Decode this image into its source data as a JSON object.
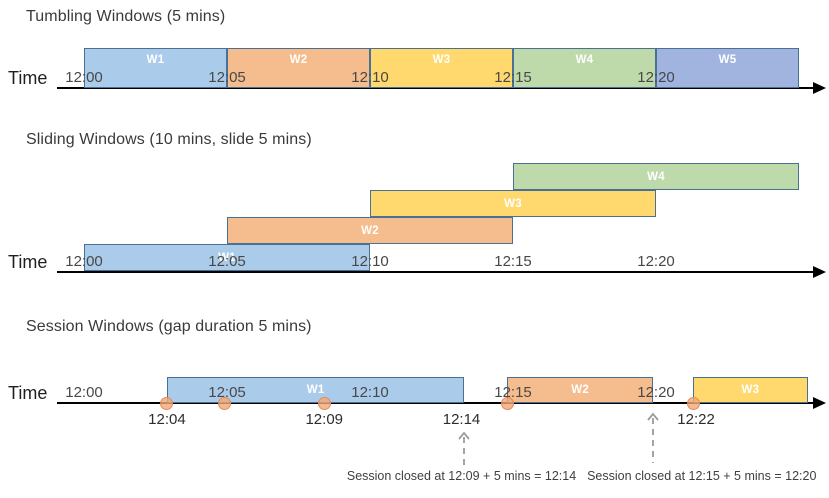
{
  "palette": {
    "blue": "#abcbea",
    "orange": "#f5bd8d",
    "yellow": "#ffd96e",
    "green": "#bedaab",
    "indigo": "#a0b4df",
    "box_border": "#4a7094",
    "dot_fill": "#f3a775",
    "dot_border": "#e08b54",
    "axis": "#000000",
    "arrow_gray": "#9b9b9b"
  },
  "sections": [
    {
      "id": "tumbling",
      "title": "Tumbling Windows (5 mins)",
      "axis_label": "Time",
      "ticks": [
        {
          "label": "12:00",
          "t": 0
        },
        {
          "label": "12:05",
          "t": 5
        },
        {
          "label": "12:10",
          "t": 10
        },
        {
          "label": "12:15",
          "t": 15
        },
        {
          "label": "12:20",
          "t": 20
        }
      ],
      "windows": [
        {
          "label": "W1",
          "color": "blue",
          "start": 0,
          "end": 5,
          "row": 0
        },
        {
          "label": "W2",
          "color": "orange",
          "start": 5,
          "end": 10,
          "row": 0
        },
        {
          "label": "W3",
          "color": "yellow",
          "start": 10,
          "end": 15,
          "row": 0
        },
        {
          "label": "W4",
          "color": "green",
          "start": 15,
          "end": 20,
          "row": 0
        },
        {
          "label": "W5",
          "color": "indigo",
          "start": 20,
          "end": 25,
          "row": 0
        }
      ]
    },
    {
      "id": "sliding",
      "title": "Sliding Windows (10 mins, slide 5 mins)",
      "axis_label": "Time",
      "ticks": [
        {
          "label": "12:00",
          "t": 0
        },
        {
          "label": "12:05",
          "t": 5
        },
        {
          "label": "12:10",
          "t": 10
        },
        {
          "label": "12:15",
          "t": 15
        },
        {
          "label": "12:20",
          "t": 20
        }
      ],
      "windows": [
        {
          "label": "W1",
          "color": "blue",
          "start": 0,
          "end": 10,
          "row": 0
        },
        {
          "label": "W2",
          "color": "orange",
          "start": 5,
          "end": 15,
          "row": 1
        },
        {
          "label": "W3",
          "color": "yellow",
          "start": 10,
          "end": 20,
          "row": 2
        },
        {
          "label": "W4",
          "color": "green",
          "start": 15,
          "end": 25,
          "row": 3
        }
      ]
    },
    {
      "id": "session",
      "title": "Session Windows (gap duration 5 mins)",
      "axis_label": "Time",
      "ticks": [
        {
          "label": "12:00",
          "t": 0
        },
        {
          "label": "12:05",
          "t": 5
        },
        {
          "label": "12:10",
          "t": 10
        },
        {
          "label": "12:15",
          "t": 15
        },
        {
          "label": "12:20",
          "t": 20
        }
      ],
      "windows": [
        {
          "label": "W1",
          "color": "blue",
          "start": 2.9,
          "end": 13.3,
          "row": 0
        },
        {
          "label": "W2",
          "color": "orange",
          "start": 14.8,
          "end": 19.9,
          "row": 0
        },
        {
          "label": "W3",
          "color": "yellow",
          "start": 21.3,
          "end": 25.3,
          "row": 0
        }
      ],
      "events": [
        {
          "t": 2.9
        },
        {
          "t": 4.9
        },
        {
          "t": 8.4
        },
        {
          "t": 14.8
        },
        {
          "t": 21.3
        }
      ],
      "event_labels": [
        {
          "label": "12:04",
          "t": 2.9
        },
        {
          "label": "12:09",
          "t": 8.4
        },
        {
          "label": "12:14",
          "t": 13.2
        },
        {
          "label": "12:22",
          "t": 21.4
        }
      ],
      "close_arrows": [
        {
          "t": 13.3
        },
        {
          "t": 19.9
        }
      ],
      "notes": [
        {
          "text": "Session closed at 12:09 + 5 mins = 12:14",
          "t": 13.2
        },
        {
          "text": "Session closed at 12:15 + 5 mins = 12:20",
          "t": 21.6
        }
      ]
    }
  ]
}
